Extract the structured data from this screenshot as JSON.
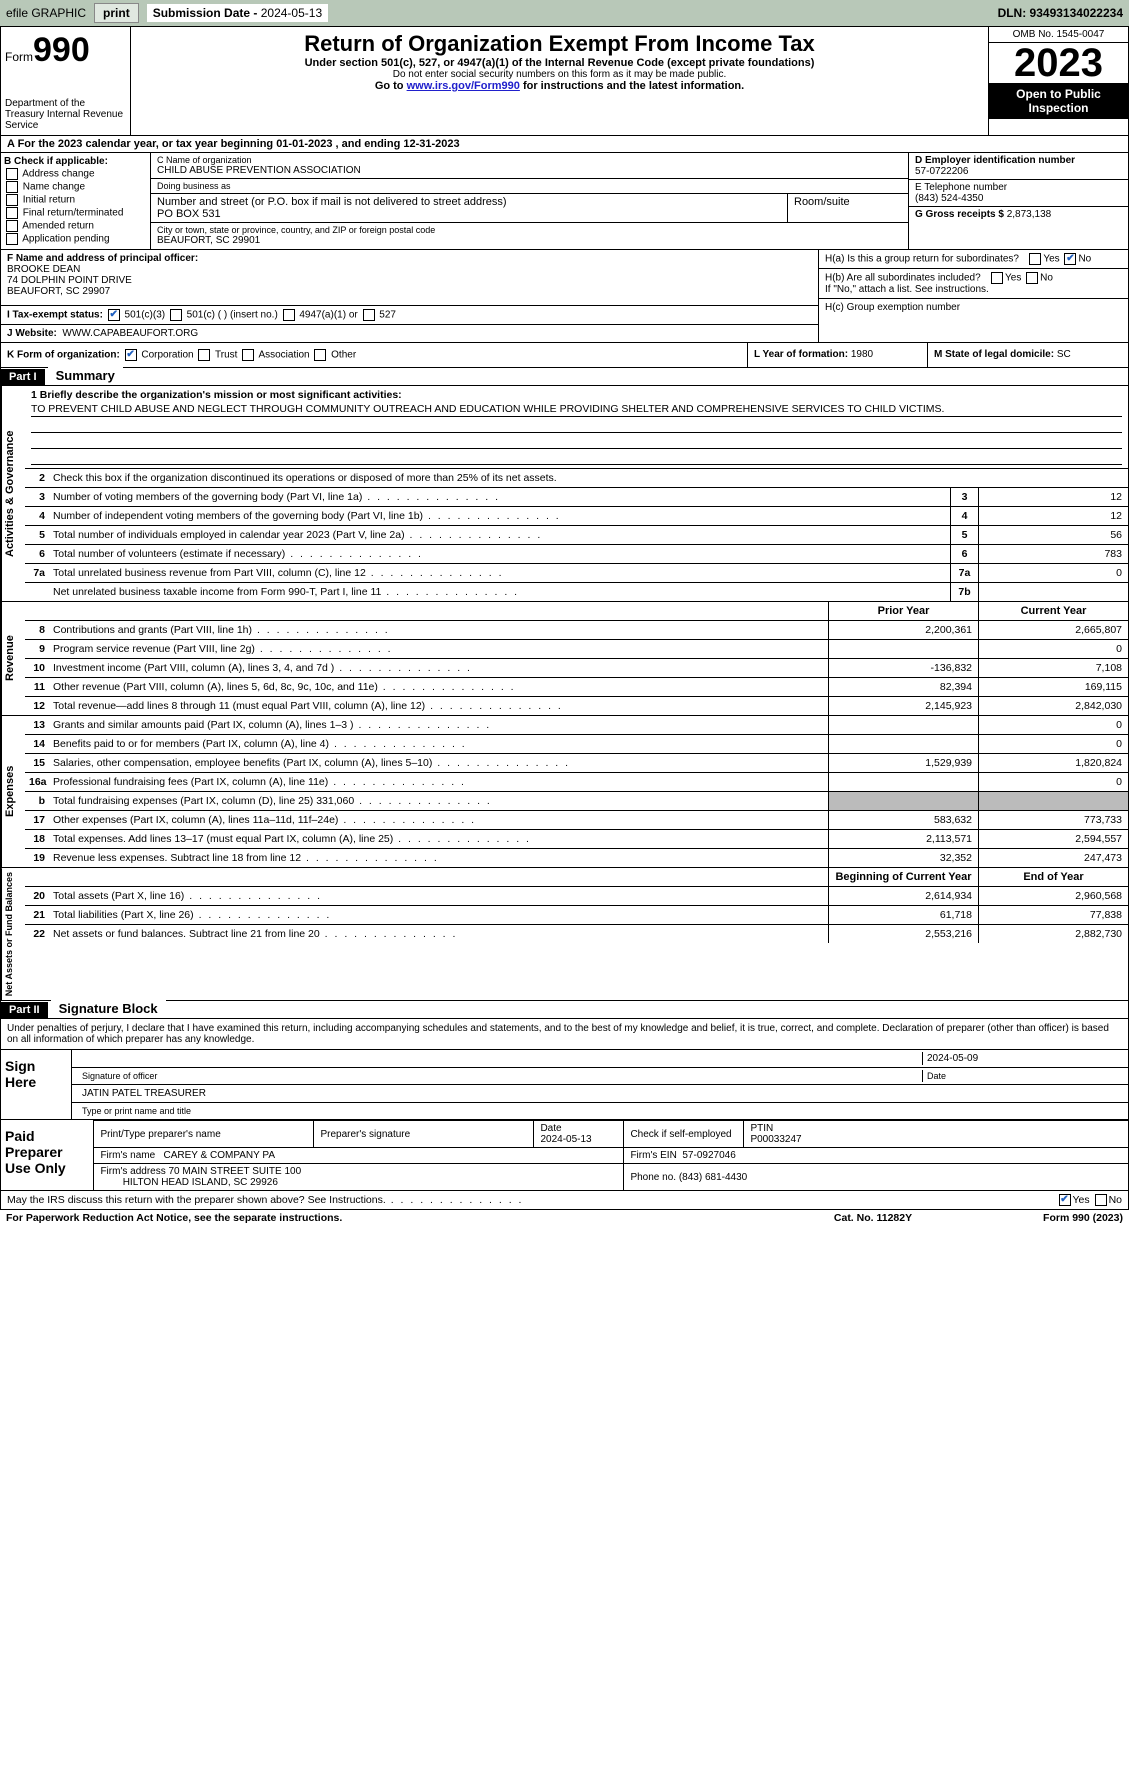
{
  "topbar": {
    "efile": "efile GRAPHIC",
    "print": "print",
    "sub_label": "Submission Date - ",
    "sub_date": "2024-05-13",
    "dln": "DLN: 93493134022234"
  },
  "header": {
    "form": "Form",
    "num": "990",
    "dept": "Department of the Treasury Internal Revenue Service",
    "title": "Return of Organization Exempt From Income Tax",
    "sub1": "Under section 501(c), 527, or 4947(a)(1) of the Internal Revenue Code (except private foundations)",
    "sub2": "Do not enter social security numbers on this form as it may be made public.",
    "sub3_pre": "Go to ",
    "sub3_link": "www.irs.gov/Form990",
    "sub3_post": " for instructions and the latest information.",
    "omb": "OMB No. 1545-0047",
    "year": "2023",
    "inspect": "Open to Public Inspection"
  },
  "rowA": "A   For the 2023 calendar year, or tax year beginning 01-01-2023    , and ending 12-31-2023",
  "boxB": {
    "hdr": "B Check if applicable:",
    "items": [
      "Address change",
      "Name change",
      "Initial return",
      "Final return/terminated",
      "Amended return",
      "Application pending"
    ]
  },
  "boxC": {
    "name_lbl": "C Name of organization",
    "name": "CHILD ABUSE PREVENTION ASSOCIATION",
    "dba_lbl": "Doing business as",
    "dba": "",
    "street_lbl": "Number and street (or P.O. box if mail is not delivered to street address)",
    "street": "PO BOX 531",
    "room_lbl": "Room/suite",
    "city_lbl": "City or town, state or province, country, and ZIP or foreign postal code",
    "city": "BEAUFORT, SC  29901"
  },
  "boxD": {
    "lbl": "D Employer identification number",
    "val": "57-0722206"
  },
  "boxE": {
    "lbl": "E Telephone number",
    "val": "(843) 524-4350"
  },
  "boxG": {
    "lbl": "G Gross receipts $",
    "val": "2,873,138"
  },
  "boxF": {
    "lbl": "F  Name and address of principal officer:",
    "name": "BROOKE DEAN",
    "addr1": "74 DOLPHIN POINT DRIVE",
    "addr2": "BEAUFORT, SC  29907"
  },
  "boxH": {
    "a": "H(a)  Is this a group return for subordinates?",
    "b": "H(b)  Are all subordinates included?",
    "bnote": "If \"No,\" attach a list. See instructions.",
    "c": "H(c)  Group exemption number"
  },
  "yn": {
    "yes": "Yes",
    "no": "No"
  },
  "boxI": {
    "lbl": "I   Tax-exempt status:",
    "o1": "501(c)(3)",
    "o2": "501(c) (  ) (insert no.)",
    "o3": "4947(a)(1) or",
    "o4": "527"
  },
  "boxJ": {
    "lbl": "J   Website:",
    "val": "WWW.CAPABEAUFORT.ORG"
  },
  "boxK": {
    "lbl": "K Form of organization:",
    "o1": "Corporation",
    "o2": "Trust",
    "o3": "Association",
    "o4": "Other"
  },
  "boxL": {
    "lbl": "L Year of formation:",
    "val": "1980"
  },
  "boxM": {
    "lbl": "M State of legal domicile:",
    "val": "SC"
  },
  "part1": {
    "hdr": "Part I",
    "title": "Summary"
  },
  "govtab": "Activities & Governance",
  "revtab": "Revenue",
  "exptab": "Expenses",
  "nettab": "Net Assets or Fund Balances",
  "mission": {
    "lbl": "1   Briefly describe the organization's mission or most significant activities:",
    "txt": "TO PREVENT CHILD ABUSE AND NEGLECT THROUGH COMMUNITY OUTREACH AND EDUCATION WHILE PROVIDING SHELTER AND COMPREHENSIVE SERVICES TO CHILD VICTIMS."
  },
  "line2": "Check this box     if the organization discontinued its operations or disposed of more than 25% of its net assets.",
  "lines_gov": [
    {
      "n": "3",
      "t": "Number of voting members of the governing body (Part VI, line 1a)",
      "b": "3",
      "v": "12"
    },
    {
      "n": "4",
      "t": "Number of independent voting members of the governing body (Part VI, line 1b)",
      "b": "4",
      "v": "12"
    },
    {
      "n": "5",
      "t": "Total number of individuals employed in calendar year 2023 (Part V, line 2a)",
      "b": "5",
      "v": "56"
    },
    {
      "n": "6",
      "t": "Total number of volunteers (estimate if necessary)",
      "b": "6",
      "v": "783"
    },
    {
      "n": "7a",
      "t": "Total unrelated business revenue from Part VIII, column (C), line 12",
      "b": "7a",
      "v": "0"
    },
    {
      "n": "",
      "t": "Net unrelated business taxable income from Form 990-T, Part I, line 11",
      "b": "7b",
      "v": ""
    }
  ],
  "hdr_py": "Prior Year",
  "hdr_cy": "Current Year",
  "lines_rev": [
    {
      "n": "8",
      "t": "Contributions and grants (Part VIII, line 1h)",
      "p": "2,200,361",
      "c": "2,665,807"
    },
    {
      "n": "9",
      "t": "Program service revenue (Part VIII, line 2g)",
      "p": "",
      "c": "0"
    },
    {
      "n": "10",
      "t": "Investment income (Part VIII, column (A), lines 3, 4, and 7d )",
      "p": "-136,832",
      "c": "7,108"
    },
    {
      "n": "11",
      "t": "Other revenue (Part VIII, column (A), lines 5, 6d, 8c, 9c, 10c, and 11e)",
      "p": "82,394",
      "c": "169,115"
    },
    {
      "n": "12",
      "t": "Total revenue—add lines 8 through 11 (must equal Part VIII, column (A), line 12)",
      "p": "2,145,923",
      "c": "2,842,030"
    }
  ],
  "lines_exp": [
    {
      "n": "13",
      "t": "Grants and similar amounts paid (Part IX, column (A), lines 1–3 )",
      "p": "",
      "c": "0"
    },
    {
      "n": "14",
      "t": "Benefits paid to or for members (Part IX, column (A), line 4)",
      "p": "",
      "c": "0"
    },
    {
      "n": "15",
      "t": "Salaries, other compensation, employee benefits (Part IX, column (A), lines 5–10)",
      "p": "1,529,939",
      "c": "1,820,824"
    },
    {
      "n": "16a",
      "t": "Professional fundraising fees (Part IX, column (A), line 11e)",
      "p": "",
      "c": "0"
    },
    {
      "n": "b",
      "t": "Total fundraising expenses (Part IX, column (D), line 25) 331,060",
      "p": "shade",
      "c": "shade"
    },
    {
      "n": "17",
      "t": "Other expenses (Part IX, column (A), lines 11a–11d, 11f–24e)",
      "p": "583,632",
      "c": "773,733"
    },
    {
      "n": "18",
      "t": "Total expenses. Add lines 13–17 (must equal Part IX, column (A), line 25)",
      "p": "2,113,571",
      "c": "2,594,557"
    },
    {
      "n": "19",
      "t": "Revenue less expenses. Subtract line 18 from line 12",
      "p": "32,352",
      "c": "247,473"
    }
  ],
  "hdr_by": "Beginning of Current Year",
  "hdr_ey": "End of Year",
  "lines_net": [
    {
      "n": "20",
      "t": "Total assets (Part X, line 16)",
      "p": "2,614,934",
      "c": "2,960,568"
    },
    {
      "n": "21",
      "t": "Total liabilities (Part X, line 26)",
      "p": "61,718",
      "c": "77,838"
    },
    {
      "n": "22",
      "t": "Net assets or fund balances. Subtract line 21 from line 20",
      "p": "2,553,216",
      "c": "2,882,730"
    }
  ],
  "part2": {
    "hdr": "Part II",
    "title": "Signature Block"
  },
  "perjury": "Under penalties of perjury, I declare that I have examined this return, including accompanying schedules and statements, and to the best of my knowledge and belief, it is true, correct, and complete. Declaration of preparer (other than officer) is based on all information of which preparer has any knowledge.",
  "sign": {
    "lbl": "Sign Here",
    "sig_lbl": "Signature of officer",
    "date_lbl": "Date",
    "date": "2024-05-09",
    "name": "JATIN PATEL TREASURER",
    "name_lbl": "Type or print name and title"
  },
  "paid": {
    "lbl": "Paid Preparer Use Only",
    "prep_name_lbl": "Print/Type preparer's name",
    "prep_sig_lbl": "Preparer's signature",
    "date_lbl": "Date",
    "date": "2024-05-13",
    "check_lbl": "Check      if self-employed",
    "ptin_lbl": "PTIN",
    "ptin": "P00033247",
    "firm_name_lbl": "Firm's name",
    "firm_name": "CAREY & COMPANY PA",
    "firm_ein_lbl": "Firm's EIN",
    "firm_ein": "57-0927046",
    "firm_addr_lbl": "Firm's address",
    "firm_addr1": "70 MAIN STREET SUITE 100",
    "firm_addr2": "HILTON HEAD ISLAND, SC  29926",
    "phone_lbl": "Phone no.",
    "phone": "(843) 681-4430"
  },
  "discuss": "May the IRS discuss this return with the preparer shown above? See Instructions.",
  "footer": {
    "left": "For Paperwork Reduction Act Notice, see the separate instructions.",
    "mid": "Cat. No. 11282Y",
    "right": "Form 990 (2023)"
  }
}
